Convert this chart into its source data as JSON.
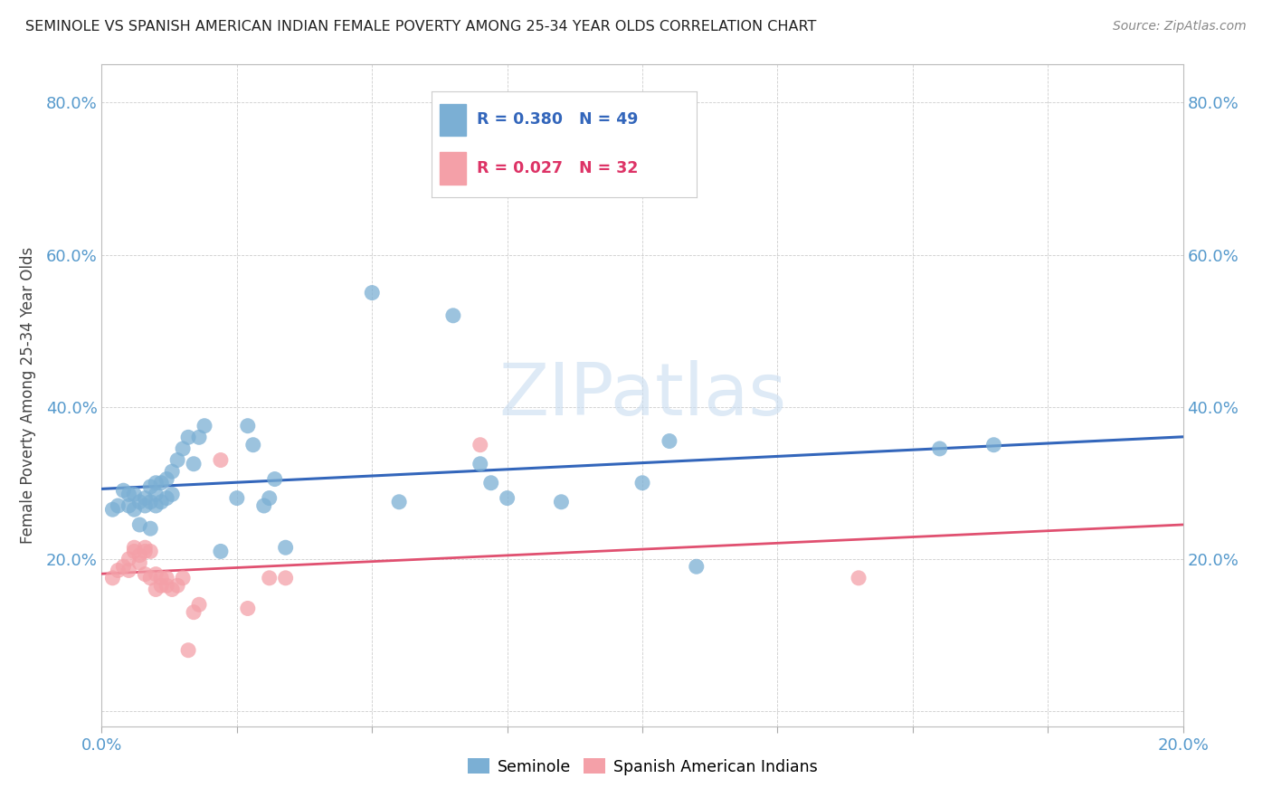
{
  "title": "SEMINOLE VS SPANISH AMERICAN INDIAN FEMALE POVERTY AMONG 25-34 YEAR OLDS CORRELATION CHART",
  "source": "Source: ZipAtlas.com",
  "ylabel": "Female Poverty Among 25-34 Year Olds",
  "xlim": [
    0.0,
    0.2
  ],
  "ylim": [
    -0.02,
    0.85
  ],
  "x_ticks": [
    0.0,
    0.025,
    0.05,
    0.075,
    0.1,
    0.125,
    0.15,
    0.175,
    0.2
  ],
  "x_tick_labels": [
    "0.0%",
    "",
    "",
    "",
    "",
    "",
    "",
    "",
    "20.0%"
  ],
  "y_ticks": [
    0.0,
    0.2,
    0.4,
    0.6,
    0.8
  ],
  "y_tick_labels": [
    "",
    "20.0%",
    "40.0%",
    "60.0%",
    "80.0%"
  ],
  "seminole_R": 0.38,
  "seminole_N": 49,
  "spanish_R": 0.027,
  "spanish_N": 32,
  "seminole_color": "#7BAFD4",
  "spanish_color": "#F4A0A8",
  "trendline_seminole_color": "#3366BB",
  "trendline_spanish_color": "#E05070",
  "background_color": "#FFFFFF",
  "grid_color": "#C8C8C8",
  "watermark": "ZIPatlas",
  "seminole_x": [
    0.002,
    0.003,
    0.004,
    0.005,
    0.005,
    0.006,
    0.006,
    0.007,
    0.007,
    0.008,
    0.008,
    0.009,
    0.009,
    0.009,
    0.01,
    0.01,
    0.01,
    0.011,
    0.011,
    0.012,
    0.012,
    0.013,
    0.013,
    0.014,
    0.015,
    0.016,
    0.017,
    0.018,
    0.019,
    0.022,
    0.025,
    0.027,
    0.028,
    0.03,
    0.031,
    0.032,
    0.034,
    0.05,
    0.055,
    0.065,
    0.07,
    0.072,
    0.075,
    0.085,
    0.1,
    0.105,
    0.11,
    0.155,
    0.165
  ],
  "seminole_y": [
    0.265,
    0.27,
    0.29,
    0.27,
    0.285,
    0.265,
    0.285,
    0.245,
    0.275,
    0.28,
    0.27,
    0.24,
    0.275,
    0.295,
    0.27,
    0.3,
    0.285,
    0.275,
    0.3,
    0.28,
    0.305,
    0.285,
    0.315,
    0.33,
    0.345,
    0.36,
    0.325,
    0.36,
    0.375,
    0.21,
    0.28,
    0.375,
    0.35,
    0.27,
    0.28,
    0.305,
    0.215,
    0.55,
    0.275,
    0.52,
    0.325,
    0.3,
    0.28,
    0.275,
    0.3,
    0.355,
    0.19,
    0.345,
    0.35
  ],
  "spanish_x": [
    0.002,
    0.003,
    0.004,
    0.005,
    0.005,
    0.006,
    0.006,
    0.007,
    0.007,
    0.008,
    0.008,
    0.008,
    0.009,
    0.009,
    0.01,
    0.01,
    0.011,
    0.011,
    0.012,
    0.012,
    0.013,
    0.014,
    0.015,
    0.016,
    0.017,
    0.018,
    0.022,
    0.027,
    0.031,
    0.034,
    0.07,
    0.14
  ],
  "spanish_y": [
    0.175,
    0.185,
    0.19,
    0.185,
    0.2,
    0.215,
    0.21,
    0.195,
    0.205,
    0.21,
    0.18,
    0.215,
    0.175,
    0.21,
    0.16,
    0.18,
    0.175,
    0.165,
    0.175,
    0.165,
    0.16,
    0.165,
    0.175,
    0.08,
    0.13,
    0.14,
    0.33,
    0.135,
    0.175,
    0.175,
    0.35,
    0.175
  ]
}
